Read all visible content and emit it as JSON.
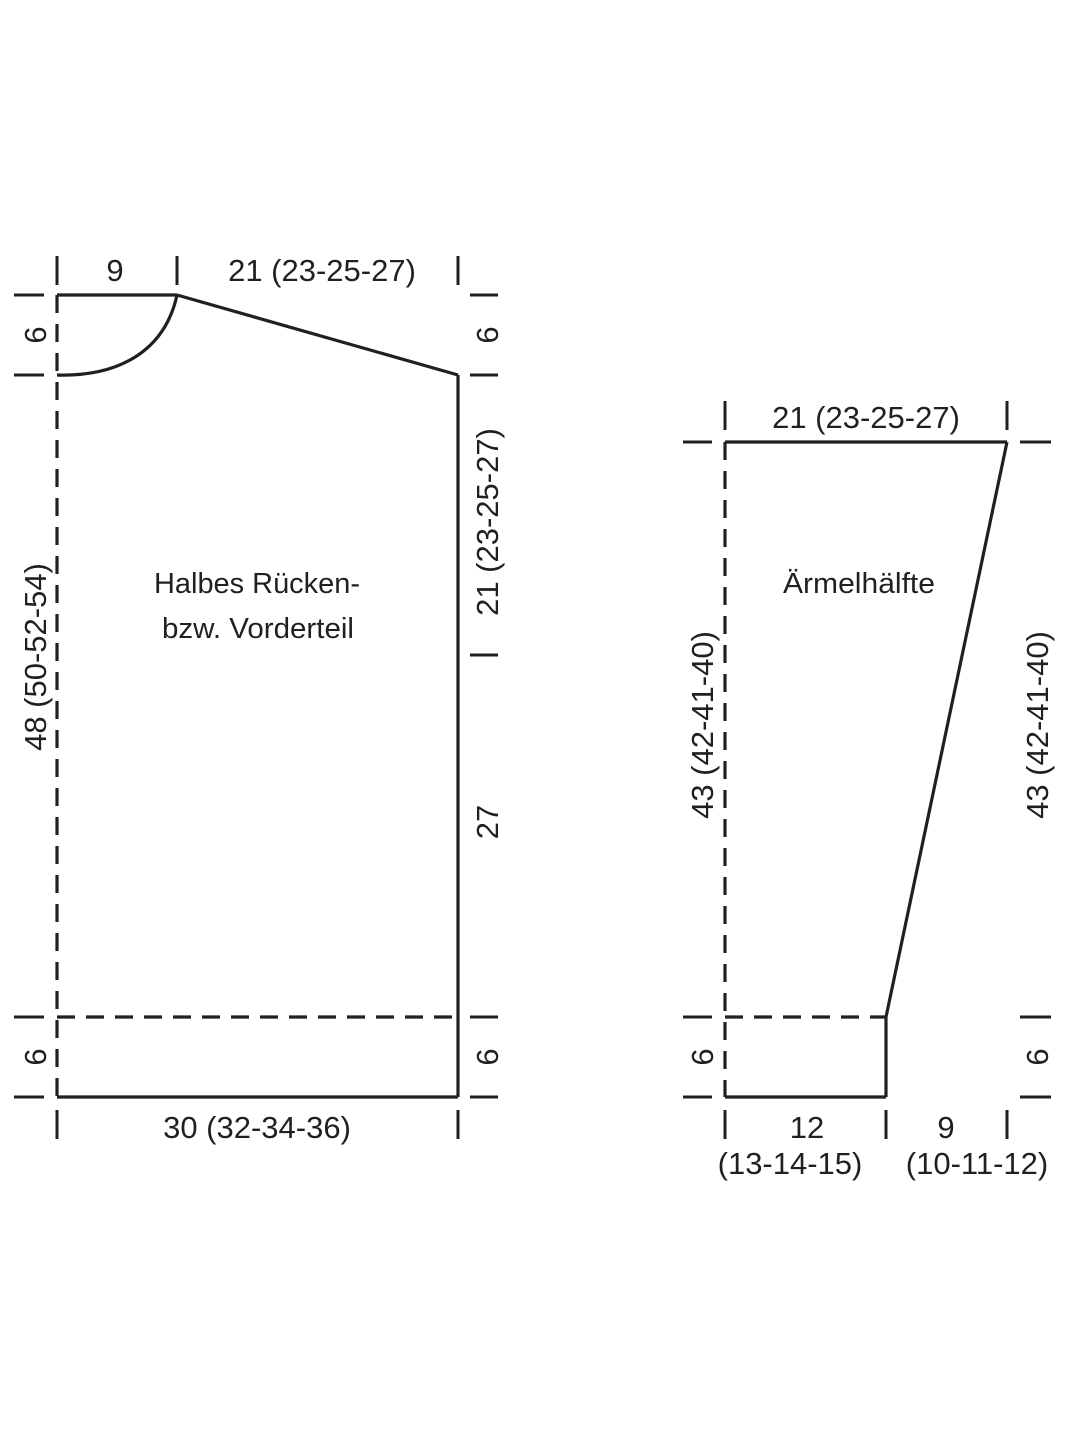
{
  "colors": {
    "line": "#231f20",
    "background": "#ffffff"
  },
  "body_piece": {
    "title_line1": "Halbes Rücken-",
    "title_line2": "bzw. Vorderteil",
    "neck_width": "9",
    "shoulder_width": "21 (23-25-27)",
    "neck_depth": "6",
    "total_length": "48 (50-52-54)",
    "hem_left": "6",
    "shoulder_drop": "6",
    "armhole_depth": "21 (23-25-27)",
    "side_length": "27",
    "hem_right": "6",
    "bottom_width": "30 (32-34-36)"
  },
  "sleeve_piece": {
    "title": "Ärmelhälfte",
    "top_width": "21 (23-25-27)",
    "length_left": "43 (42-41-40)",
    "length_right": "43 (42-41-40)",
    "cuff_left": "6",
    "cuff_right": "6",
    "cuff_width_line1": "12",
    "cuff_width_line2": "(13-14-15)",
    "increase_width_line1": "9",
    "increase_width_line2": "(10-11-12)"
  }
}
